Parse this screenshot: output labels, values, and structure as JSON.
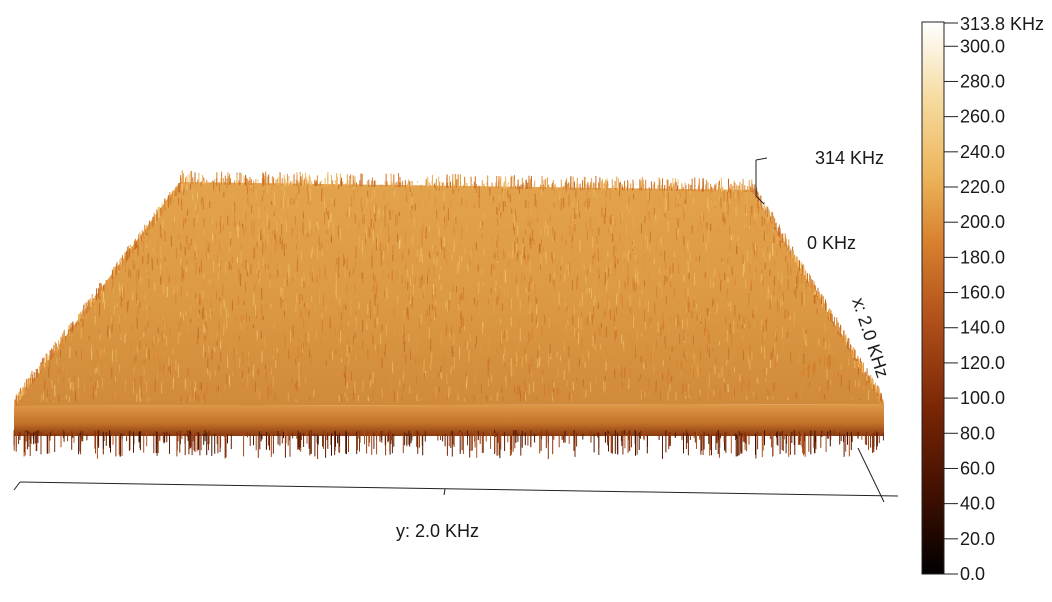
{
  "chart_data": {
    "type": "heatmap",
    "render_style": "3d-surface",
    "title": "",
    "xlabel": "y: 2.0 KHz",
    "ylabel": "x: 2.0 KHz",
    "zlabel_top": "314 KHz",
    "zlabel_bottom": "0 KHz",
    "zlim": [
      0,
      313.8
    ],
    "typical_z_range": [
      160,
      240
    ],
    "colorbar": {
      "max_label": "313.8 KHz",
      "ticks": [
        "300.0",
        "280.0",
        "260.0",
        "240.0",
        "220.0",
        "200.0",
        "180.0",
        "160.0",
        "140.0",
        "120.0",
        "100.0",
        "80.0",
        "60.0",
        "40.0",
        "20.0",
        "0.0"
      ],
      "tick_values": [
        300,
        280,
        260,
        240,
        220,
        200,
        180,
        160,
        140,
        120,
        100,
        80,
        60,
        40,
        20,
        0
      ],
      "colors": [
        "#000000",
        "#3a0e00",
        "#7a2606",
        "#b0501a",
        "#d8802e",
        "#ecb45a",
        "#f6dba0",
        "#ffffff"
      ]
    },
    "grid": false
  }
}
